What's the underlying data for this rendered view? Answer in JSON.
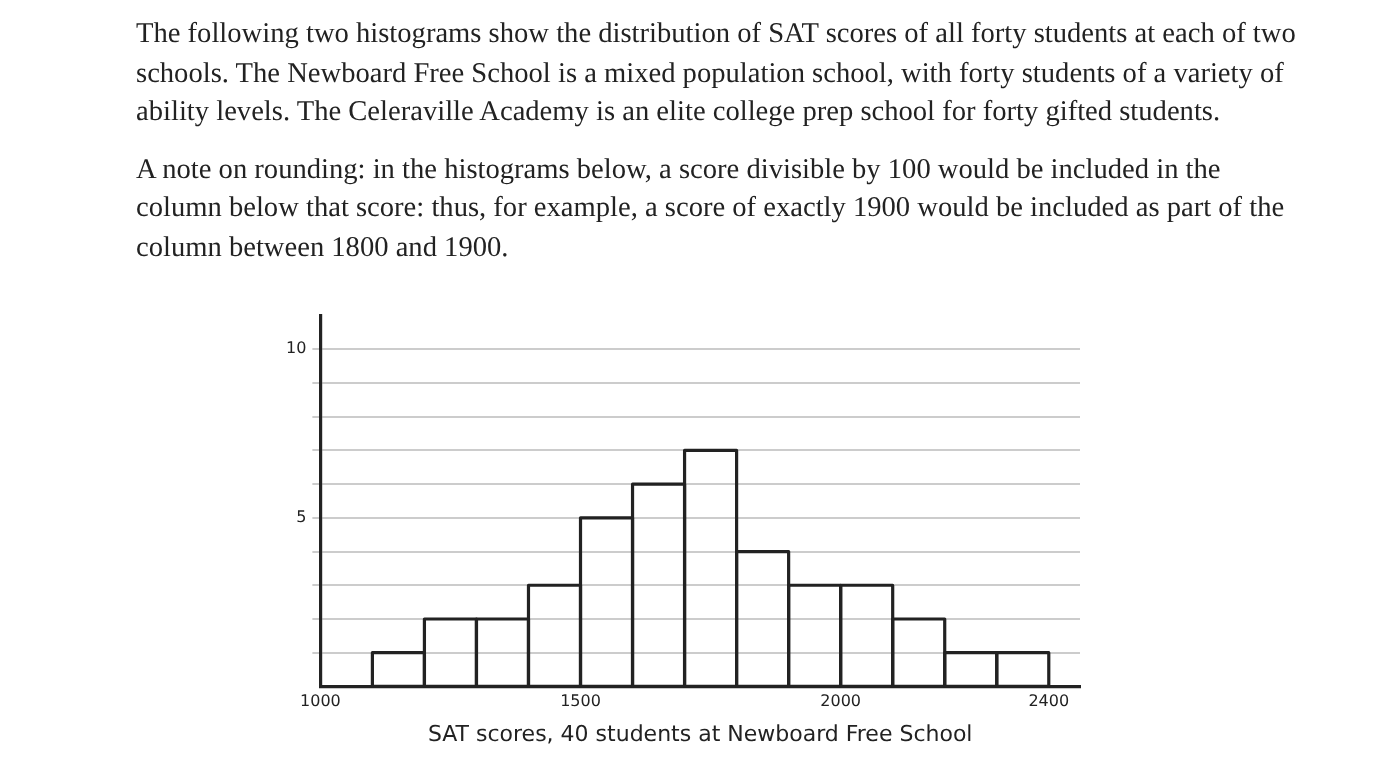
{
  "chart_data": {
    "type": "histogram",
    "annotations": [
      "The following two histograms show the distribution of SAT scores of all forty students at each of two schools. The Newboard Free School is a mixed population school, with forty students of a variety of ability levels. The Celeraville Academy is an elite college prep school for forty gifted students.",
      "A note on rounding: in the histograms below, a score divisible by 100 would be included in the column below that score: thus, for example, a score of exactly 1900 would be included as part of the column between 1800 and 1900."
    ],
    "xlabel": "SAT scores, 40 students at Newboard Free School",
    "bins": [
      1100,
      1200,
      1300,
      1400,
      1500,
      1600,
      1700,
      1800,
      1900,
      2000,
      2100,
      2200,
      2300,
      2400
    ],
    "values": [
      1,
      2,
      2,
      3,
      5,
      6,
      7,
      4,
      3,
      3,
      2,
      1,
      1
    ],
    "color": "#222222",
    "xlim": [
      1000,
      2460
    ],
    "xticks": [
      1000,
      1500,
      2000,
      2400
    ],
    "ylim": [
      0,
      11
    ],
    "yticks": [
      {
        "value": 1,
        "label": null
      },
      {
        "value": 2,
        "label": null
      },
      {
        "value": 3,
        "label": null
      },
      {
        "value": 4,
        "label": null
      },
      5,
      {
        "value": 6,
        "label": null
      },
      {
        "value": 7,
        "label": null
      },
      {
        "value": 8,
        "label": null
      },
      {
        "value": 9,
        "label": null
      },
      10
    ],
    "grid": "y"
  }
}
